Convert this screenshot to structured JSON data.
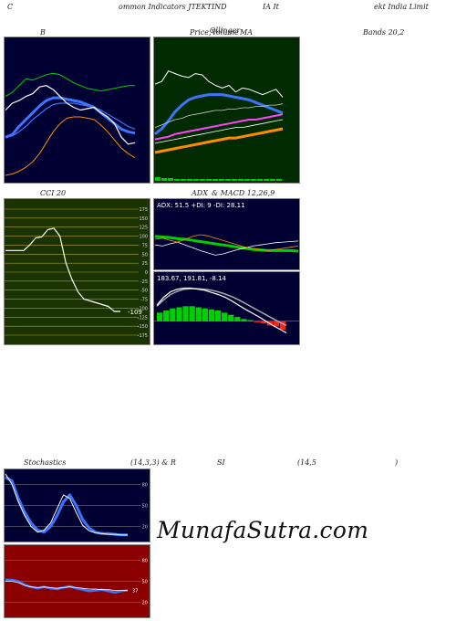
{
  "header": {
    "part1": "C",
    "part2": "ommon Indicators JTEKTIND",
    "part3": "IA It",
    "part4": "ekt India Limit"
  },
  "titles": {
    "bollinger": "B",
    "price_a": "Price,",
    "price_b": "Volume",
    "price_c": "MA",
    "price_overlap": "Ollinger",
    "bands": "Bands 20,2",
    "cci": "CCI 20",
    "adx_macd_a": "ADX",
    "adx_macd_b": "& MACD 12,26,9",
    "stoch": "Stochastics",
    "stoch_params": "(14,3,3) & R",
    "rsi": "SI",
    "rsi_params": "(14,5",
    "rsi_close": ")"
  },
  "brand": "MunafaSutra.com",
  "colors": {
    "navy": "#000033",
    "dark_green": "#002a00",
    "olive_green": "#1b3300",
    "maroon": "#8b0000",
    "blue": "#3b74ff",
    "orange": "#ff8c00",
    "white": "#ffffff",
    "green": "#00d000",
    "magenta": "#ff44ff"
  },
  "chart_data": [
    {
      "id": "bollinger",
      "type": "line",
      "title": "B",
      "series": [
        {
          "values": [
            60,
            63,
            68,
            73,
            72,
            74,
            76,
            77,
            76,
            73,
            70,
            68,
            66,
            65,
            64,
            65,
            66,
            67,
            68,
            68
          ]
        },
        {
          "values": [
            30,
            32,
            38,
            43,
            48,
            53,
            57,
            59,
            59,
            58,
            57,
            56,
            54,
            52,
            48,
            44,
            40,
            36,
            34,
            33
          ]
        },
        {
          "values": [
            30,
            31,
            34,
            38,
            43,
            47,
            51,
            54,
            55,
            55,
            55,
            54,
            53,
            52,
            50,
            47,
            44,
            41,
            38,
            36
          ]
        },
        {
          "values": [
            2,
            3,
            5,
            8,
            12,
            18,
            26,
            34,
            40,
            44,
            45,
            45,
            44,
            43,
            39,
            34,
            28,
            22,
            18,
            15
          ]
        },
        {
          "values": [
            50,
            55,
            57,
            60,
            62,
            67,
            68,
            65,
            60,
            55,
            52,
            50,
            51,
            52,
            48,
            45,
            40,
            30,
            25,
            26
          ]
        }
      ],
      "ylim": [
        0,
        100
      ]
    },
    {
      "id": "price",
      "type": "line",
      "title": "Price, Volume MA",
      "series": [
        {
          "values": [
            68,
            70,
            78,
            76,
            74,
            73,
            76,
            75,
            70,
            67,
            65,
            67,
            62,
            65,
            64,
            62,
            60,
            62,
            64,
            58
          ]
        },
        {
          "values": [
            30,
            34,
            40,
            47,
            52,
            56,
            58,
            59,
            60,
            60,
            60,
            59,
            58,
            57,
            56,
            54,
            52,
            50,
            48,
            46
          ]
        },
        {
          "values": [
            35,
            37,
            39,
            41,
            42,
            44,
            45,
            46,
            47,
            48,
            48,
            49,
            49,
            50,
            50,
            51,
            51,
            52,
            52,
            53
          ]
        },
        {
          "values": [
            26,
            27,
            28,
            30,
            31,
            32,
            33,
            34,
            35,
            36,
            37,
            38,
            39,
            40,
            41,
            41,
            42,
            43,
            44,
            45
          ]
        },
        {
          "values": [
            23,
            24,
            25,
            26,
            27,
            28,
            29,
            30,
            31,
            32,
            33,
            34,
            35,
            35,
            36,
            37,
            38,
            39,
            40,
            41
          ]
        },
        {
          "values": [
            16,
            17,
            18,
            19,
            20,
            21,
            22,
            23,
            24,
            25,
            26,
            27,
            27,
            28,
            29,
            30,
            31,
            32,
            33,
            34
          ]
        }
      ],
      "volume": [
        4,
        3,
        3,
        2,
        2,
        2,
        2,
        2,
        2,
        2,
        2,
        2,
        2,
        2,
        2,
        2,
        2,
        2,
        2,
        2
      ],
      "ylim": [
        0,
        100
      ]
    },
    {
      "id": "cci",
      "type": "line",
      "title": "CCI 20",
      "ticks": [
        175,
        150,
        125,
        100,
        75,
        50,
        25,
        0,
        -25,
        -50,
        -75,
        -100,
        -125,
        -150,
        -175
      ],
      "series": [
        {
          "values": [
            60,
            60,
            60,
            60,
            75,
            95,
            98,
            118,
            122,
            100,
            25,
            -20,
            -55,
            -75,
            -80,
            -85,
            -90,
            -95,
            -109,
            -109
          ]
        }
      ],
      "last_label": "-109",
      "ylim": [
        -175,
        175
      ]
    },
    {
      "id": "adx",
      "type": "line",
      "title": "ADX & MACD 12,26,9",
      "label": "ADX: 51.5 +DI: 9 -DI: 28.11",
      "series": [
        {
          "values": [
            55,
            54,
            53,
            51,
            50,
            48,
            46,
            44,
            42,
            40,
            38,
            36,
            34,
            32,
            31,
            30,
            30,
            30,
            30,
            29
          ]
        },
        {
          "values": [
            40,
            38,
            42,
            45,
            40,
            35,
            30,
            26,
            22,
            24,
            28,
            32,
            35,
            38,
            40,
            42,
            44,
            45,
            46,
            47
          ]
        },
        {
          "values": [
            50,
            52,
            48,
            45,
            50,
            55,
            58,
            56,
            52,
            48,
            44,
            40,
            36,
            34,
            32,
            30,
            32,
            34,
            36,
            38
          ]
        }
      ],
      "ylim": [
        0,
        100
      ]
    },
    {
      "id": "macd",
      "type": "bar",
      "label": "183.67, 191.81, -8.14",
      "histogram": [
        8,
        10,
        12,
        13,
        14,
        14,
        13,
        12,
        11,
        10,
        8,
        6,
        4,
        2,
        1,
        -1,
        -2,
        -4,
        -5,
        -8
      ],
      "series": [
        {
          "values": [
            30,
            45,
            55,
            60,
            62,
            62,
            60,
            58,
            54,
            50,
            45,
            38,
            30,
            22,
            15,
            8,
            0,
            -8,
            -15,
            -22
          ]
        },
        {
          "values": [
            28,
            40,
            50,
            56,
            60,
            61,
            61,
            60,
            58,
            55,
            51,
            46,
            40,
            33,
            26,
            19,
            12,
            5,
            -2,
            -8
          ]
        }
      ],
      "ylim": [
        -40,
        80
      ]
    },
    {
      "id": "stochastics",
      "type": "line",
      "title": "Stochastics (14,3,3)",
      "ticks": [
        80,
        50,
        20
      ],
      "series": [
        {
          "values": [
            90,
            85,
            60,
            40,
            25,
            15,
            12,
            20,
            35,
            55,
            65,
            50,
            30,
            18,
            12,
            10,
            10,
            9,
            8,
            8
          ]
        },
        {
          "values": [
            95,
            80,
            55,
            35,
            20,
            12,
            15,
            25,
            45,
            65,
            60,
            40,
            22,
            14,
            11,
            10,
            9,
            9,
            8,
            8
          ]
        }
      ],
      "ylim": [
        0,
        100
      ]
    },
    {
      "id": "rsi",
      "type": "line",
      "title": "RSI (14,5)",
      "ticks": [
        80,
        50,
        20
      ],
      "series": [
        {
          "values": [
            52,
            52,
            50,
            45,
            42,
            40,
            42,
            40,
            39,
            41,
            43,
            40,
            38,
            36,
            37,
            38,
            36,
            34,
            36,
            37
          ]
        },
        {
          "values": [
            50,
            50,
            48,
            44,
            42,
            41,
            42,
            41,
            40,
            41,
            42,
            41,
            40,
            39,
            39,
            38,
            38,
            37,
            37,
            37
          ]
        }
      ],
      "last_label": "37",
      "ylim": [
        0,
        100
      ]
    }
  ]
}
